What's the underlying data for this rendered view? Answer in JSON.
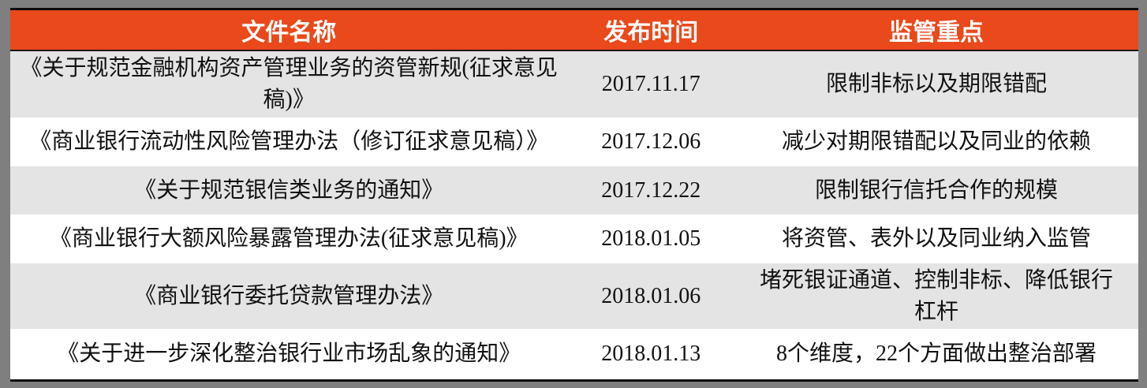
{
  "table": {
    "columns": [
      {
        "label": "文件名称"
      },
      {
        "label": "发布时间"
      },
      {
        "label": "监管重点"
      }
    ],
    "rows": [
      {
        "name": "《关于规范金融机构资产管理业务的资管新规(征求意见稿)》",
        "date": "2017.11.17",
        "focus": "限制非标以及期限错配"
      },
      {
        "name": "《商业银行流动性风险管理办法（修订征求意见稿）》",
        "date": "2017.12.06",
        "focus": "减少对期限错配以及同业的依赖"
      },
      {
        "name": "《关于规范银信类业务的通知》",
        "date": "2017.12.22",
        "focus": "限制银行信托合作的规模"
      },
      {
        "name": "《商业银行大额风险暴露管理办法(征求意见稿)》",
        "date": "2018.01.05",
        "focus": "将资管、表外以及同业纳入监管"
      },
      {
        "name": "《商业银行委托贷款管理办法》",
        "date": "2018.01.06",
        "focus": "堵死银证通道、控制非标、降低银行杠杆"
      },
      {
        "name": "《关于进一步深化整治银行业市场乱象的通知》",
        "date": "2018.01.13",
        "focus": "8个维度，22个方面做出整治部署"
      }
    ],
    "colors": {
      "header_bg": "#e9491b",
      "header_text": "#ffffff",
      "row_alt_bg": "#e4e4e4",
      "row_bg": "#ffffff",
      "frame_bg": "#7f7f7f",
      "rule": "#0a0a0a"
    }
  }
}
